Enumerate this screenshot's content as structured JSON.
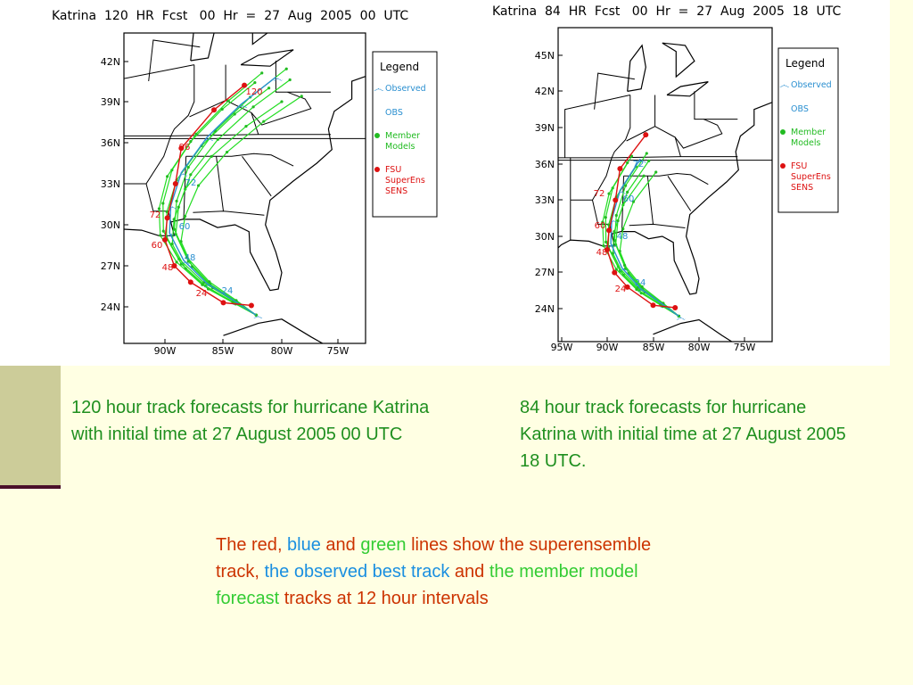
{
  "maps": [
    {
      "title": "Katrina  120  HR  Fcst   00  Hr  =  27  Aug  2005  00  UTC",
      "lat_labels": [
        "42N",
        "39N",
        "36N",
        "33N",
        "30N",
        "27N",
        "24N"
      ],
      "lon_labels": [
        "90W",
        "85W",
        "80W",
        "75W"
      ],
      "legend": {
        "title": "Legend",
        "items": [
          {
            "lines": [
              "Observed"
            ],
            "color": "#2a8fd0"
          },
          {
            "lines": [
              "OBS"
            ],
            "color": "#2a8fd0"
          },
          {
            "lines": [
              "Member",
              "Models"
            ],
            "color": "#22bb22"
          },
          {
            "lines": [
              "FSU",
              "SuperEns",
              "SENS"
            ],
            "color": "#dd1111"
          }
        ]
      },
      "hour_labels": [
        {
          "text": "120",
          "color": "#dd1111"
        },
        {
          "text": "96",
          "color": "#dd1111"
        },
        {
          "text": "72",
          "color": "#dd1111"
        },
        {
          "text": "60",
          "color": "#dd1111"
        },
        {
          "text": "48",
          "color": "#dd1111"
        },
        {
          "text": "24",
          "color": "#dd1111"
        },
        {
          "text": "72",
          "color": "#2a8fd0"
        },
        {
          "text": "60",
          "color": "#2a8fd0"
        },
        {
          "text": "48",
          "color": "#2a8fd0"
        },
        {
          "text": "24",
          "color": "#2a8fd0"
        }
      ]
    },
    {
      "title": "Katrina  84  HR  Fcst   00  Hr  =  27  Aug  2005  18  UTC",
      "lat_labels": [
        "45N",
        "42N",
        "39N",
        "36N",
        "33N",
        "30N",
        "27N",
        "24N"
      ],
      "lon_labels": [
        "95W",
        "90W",
        "85W",
        "80W",
        "75W"
      ],
      "legend": {
        "title": "Legend",
        "items": [
          {
            "lines": [
              "Observed"
            ],
            "color": "#2a8fd0"
          },
          {
            "lines": [
              "OBS"
            ],
            "color": "#2a8fd0"
          },
          {
            "lines": [
              "Member",
              "Models"
            ],
            "color": "#22bb22"
          },
          {
            "lines": [
              "FSU",
              "SuperEns",
              "SENS"
            ],
            "color": "#dd1111"
          }
        ]
      },
      "hour_labels": [
        {
          "text": "72",
          "color": "#dd1111"
        },
        {
          "text": "60",
          "color": "#dd1111"
        },
        {
          "text": "48",
          "color": "#dd1111"
        },
        {
          "text": "24",
          "color": "#dd1111"
        },
        {
          "text": "72",
          "color": "#2a8fd0"
        },
        {
          "text": "60",
          "color": "#2a8fd0"
        },
        {
          "text": "48",
          "color": "#2a8fd0"
        },
        {
          "text": "24",
          "color": "#2a8fd0"
        }
      ]
    }
  ],
  "captions": [
    "120 hour track forecasts for hurricane Katrina with initial time at 27 August 2005 00 UTC",
    "84 hour track forecasts for hurricane Katrina with initial time at 27 August 2005 18 UTC."
  ],
  "note": [
    {
      "text": "The red",
      "color": "#cc3300"
    },
    {
      "text": ",",
      "color": "#cc3300"
    },
    {
      "text": " blue",
      "color": "#1a8fe0"
    },
    {
      "text": " and",
      "color": "#cc3300"
    },
    {
      "text": " green",
      "color": "#33cc33"
    },
    {
      "text": " lines show the superensemble track",
      "color": "#cc3300"
    },
    {
      "text": ",",
      "color": "#cc3300"
    },
    {
      "text": " the observed best track",
      "color": "#1a8fe0"
    },
    {
      "text": " and",
      "color": "#cc3300"
    },
    {
      "text": " the member model forecast",
      "color": "#33cc33"
    },
    {
      "text": " tracks at 12 hour intervals",
      "color": "#cc3300"
    }
  ]
}
